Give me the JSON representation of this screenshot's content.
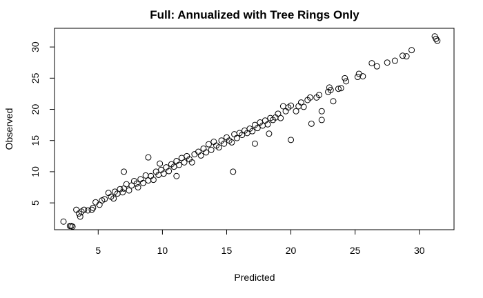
{
  "chart_data": {
    "type": "scatter",
    "title": "Full: Annualized with Tree Rings Only",
    "xlabel": "Predicted",
    "ylabel": "Observed",
    "xlim": [
      1.6,
      32.7
    ],
    "ylim": [
      0.7,
      33.0
    ],
    "x_ticks": [
      5,
      10,
      15,
      20,
      25,
      30
    ],
    "y_ticks": [
      5,
      10,
      15,
      20,
      25,
      30
    ],
    "marker": "open-circle",
    "grid": false,
    "legend": "none",
    "points": [
      [
        2.3,
        2.0
      ],
      [
        2.8,
        1.3
      ],
      [
        2.9,
        1.3
      ],
      [
        3.0,
        1.2
      ],
      [
        3.3,
        3.9
      ],
      [
        3.5,
        3.3
      ],
      [
        3.6,
        2.8
      ],
      [
        3.7,
        3.6
      ],
      [
        3.9,
        3.9
      ],
      [
        4.2,
        3.8
      ],
      [
        4.5,
        3.9
      ],
      [
        4.6,
        4.2
      ],
      [
        4.8,
        5.1
      ],
      [
        5.1,
        4.7
      ],
      [
        5.3,
        5.4
      ],
      [
        5.5,
        5.6
      ],
      [
        5.8,
        6.6
      ],
      [
        6.0,
        6.0
      ],
      [
        6.2,
        5.7
      ],
      [
        6.3,
        6.8
      ],
      [
        6.5,
        6.5
      ],
      [
        6.7,
        7.2
      ],
      [
        6.9,
        6.7
      ],
      [
        7.0,
        7.3
      ],
      [
        7.0,
        10.0
      ],
      [
        7.2,
        8.0
      ],
      [
        7.4,
        7.0
      ],
      [
        7.6,
        7.8
      ],
      [
        7.8,
        8.5
      ],
      [
        8.0,
        8.1
      ],
      [
        8.1,
        7.5
      ],
      [
        8.3,
        8.8
      ],
      [
        8.5,
        8.2
      ],
      [
        8.7,
        9.4
      ],
      [
        8.9,
        8.6
      ],
      [
        8.9,
        12.3
      ],
      [
        9.1,
        9.3
      ],
      [
        9.3,
        8.7
      ],
      [
        9.5,
        10.0
      ],
      [
        9.7,
        9.5
      ],
      [
        9.9,
        10.3
      ],
      [
        9.8,
        11.3
      ],
      [
        10.1,
        9.7
      ],
      [
        10.3,
        10.7
      ],
      [
        10.5,
        10.1
      ],
      [
        10.7,
        11.2
      ],
      [
        10.9,
        10.8
      ],
      [
        11.1,
        11.7
      ],
      [
        11.1,
        9.3
      ],
      [
        11.3,
        11.1
      ],
      [
        11.5,
        12.2
      ],
      [
        11.7,
        11.5
      ],
      [
        11.9,
        12.5
      ],
      [
        12.1,
        12.0
      ],
      [
        12.3,
        11.5
      ],
      [
        12.5,
        12.8
      ],
      [
        12.8,
        13.2
      ],
      [
        13.0,
        12.6
      ],
      [
        13.2,
        13.7
      ],
      [
        13.4,
        13.1
      ],
      [
        13.6,
        14.4
      ],
      [
        13.8,
        13.5
      ],
      [
        14.0,
        14.8
      ],
      [
        14.2,
        14.2
      ],
      [
        14.4,
        13.9
      ],
      [
        14.6,
        15.0
      ],
      [
        14.8,
        14.5
      ],
      [
        15.0,
        15.5
      ],
      [
        15.2,
        15.0
      ],
      [
        15.4,
        14.7
      ],
      [
        15.5,
        10.0
      ],
      [
        15.6,
        16.0
      ],
      [
        15.8,
        15.4
      ],
      [
        16.0,
        16.2
      ],
      [
        16.2,
        15.9
      ],
      [
        16.4,
        16.6
      ],
      [
        16.6,
        16.2
      ],
      [
        16.8,
        16.9
      ],
      [
        17.0,
        16.5
      ],
      [
        17.2,
        17.5
      ],
      [
        17.2,
        14.5
      ],
      [
        17.4,
        17.0
      ],
      [
        17.6,
        17.9
      ],
      [
        17.8,
        17.4
      ],
      [
        18.0,
        18.2
      ],
      [
        18.2,
        17.6
      ],
      [
        18.3,
        16.1
      ],
      [
        18.4,
        18.6
      ],
      [
        18.6,
        18.3
      ],
      [
        18.8,
        18.7
      ],
      [
        19.0,
        19.3
      ],
      [
        19.2,
        18.6
      ],
      [
        19.4,
        20.5
      ],
      [
        19.6,
        19.7
      ],
      [
        19.8,
        20.3
      ],
      [
        20.0,
        20.6
      ],
      [
        20.0,
        15.1
      ],
      [
        20.4,
        19.7
      ],
      [
        20.6,
        20.5
      ],
      [
        20.8,
        21.1
      ],
      [
        21.0,
        20.4
      ],
      [
        21.3,
        21.5
      ],
      [
        21.5,
        21.9
      ],
      [
        21.6,
        17.7
      ],
      [
        22.0,
        21.9
      ],
      [
        22.2,
        22.3
      ],
      [
        22.4,
        19.7
      ],
      [
        22.4,
        18.3
      ],
      [
        22.9,
        22.8
      ],
      [
        23.0,
        23.5
      ],
      [
        23.1,
        23.1
      ],
      [
        23.3,
        21.3
      ],
      [
        23.7,
        23.3
      ],
      [
        23.9,
        23.4
      ],
      [
        24.2,
        25.0
      ],
      [
        24.3,
        24.5
      ],
      [
        25.2,
        25.2
      ],
      [
        25.3,
        25.7
      ],
      [
        25.6,
        25.3
      ],
      [
        26.3,
        27.4
      ],
      [
        26.7,
        26.9
      ],
      [
        27.5,
        27.5
      ],
      [
        28.1,
        27.8
      ],
      [
        28.7,
        28.6
      ],
      [
        29.0,
        28.5
      ],
      [
        29.4,
        29.5
      ],
      [
        31.2,
        31.7
      ],
      [
        31.3,
        31.3
      ],
      [
        31.4,
        31.0
      ]
    ]
  }
}
